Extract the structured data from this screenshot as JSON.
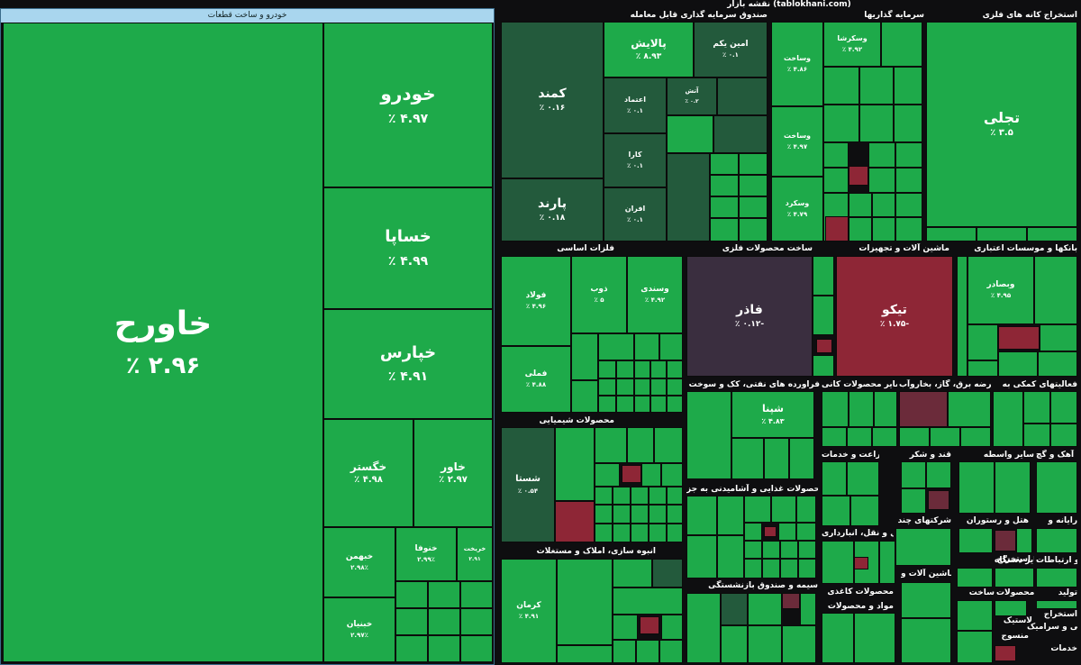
{
  "header": {
    "site_title": "نقشه بازار (tablokhani.com)"
  },
  "auto_group": {
    "title": "خودرو و ساخت قطعات",
    "tiles": [
      {
        "name": "خاورح",
        "pct": "٪ ۲.۹۶"
      },
      {
        "name": "خودرو",
        "pct": "٪ ۴.۹۷"
      },
      {
        "name": "خساپا",
        "pct": "٪ ۴.۹۹"
      },
      {
        "name": "خپارس",
        "pct": "٪ ۴.۹۱"
      },
      {
        "name": "خگستر",
        "pct": "٪ ۴.۹۸"
      },
      {
        "name": "خاور",
        "pct": "٪ ۲.۹۷"
      },
      {
        "name": "خبهمن",
        "pct": "۲.۹۸٪"
      },
      {
        "name": "خنوفا",
        "pct": "۲.۹۹٪"
      },
      {
        "name": "خریخت",
        "pct": "۲.۹۱"
      },
      {
        "name": "خبنیان",
        "pct": "۲.۹۷٪"
      }
    ]
  },
  "sectors": {
    "s1": "صندوق سرمایه گذاری قابل معامله",
    "s2": "سرمایه گذاریها",
    "s3": "استخراج کانه های فلزی",
    "s4": "فلزات اساسی",
    "s5": "ساخت محصولات فلزی",
    "s6": "ماشین آلات و تجهیزات",
    "s7": "بانکها و موسسات اعتباری",
    "s8": "محصولات شیمیایی",
    "s9": "فراورده های نفتی، کک و سوخت",
    "s10": "سایر محصولات کانی",
    "s11": "عرضه برق، گاز، بخاروآب",
    "s12": "فعالیتهای کمکی به",
    "s13": "محصولات غذایی و آشامیدنی به جز",
    "s14": "زراعت و خدمات",
    "s15": "قند و شکر",
    "s16": "سیمان، آهک و گچ",
    "s17": "انبوه سازی، املاک و مستغلات",
    "s18": "حمل و نقل، انبارداری",
    "s19": "هتل و رستوران",
    "s20": "شرکتهای چند",
    "s21": "رایانه و",
    "s22": "مواد و محصولات",
    "s23": "ماشین آلات و",
    "s24": "لاستیک و پلاستیک",
    "s25": "استخراج",
    "s26": "ساخت",
    "s27": "اطلاعات و ارتباطات",
    "s28": "تولید",
    "s29": "محصولات",
    "s30": "سایر واسطه",
    "s31": "لاستیک",
    "s32": "کاشی و سرامیک",
    "s33": "خدمات",
    "s34": "منسوج",
    "s35": "استخراج",
    "s36": "سایر دستگاه",
    "s37": "سیمه و صندوق بازنشستگی",
    "s38": "محصولات کاغذی"
  },
  "tiles": {
    "kamand": {
      "name": "کمند",
      "pct": "٪ ۰.۱۶"
    },
    "parand": {
      "name": "پارند",
      "pct": "٪ ۰.۱۸"
    },
    "palayesh": {
      "name": "پالایش",
      "pct": "٪ ۸.۹۳"
    },
    "amin_yekom": {
      "name": "امین یکم",
      "pct": "٪ ۰.۱"
    },
    "etemad": {
      "name": "اعتماد",
      "pct": "٪ ۰.۱"
    },
    "atlas": {
      "name": "آتش",
      "pct": "٪ ۰.۲"
    },
    "kara": {
      "name": "کارا",
      "pct": "٪ ۰.۱"
    },
    "afran": {
      "name": "افران",
      "pct": "٪ ۰.۱"
    },
    "vasakhsa": {
      "name": "وساخت",
      "pct": "٪ ۴.۸۶"
    },
    "vaskarsha": {
      "name": "وسکرشا",
      "pct": "٪ ۴.۹۲"
    },
    "vasakhtam": {
      "name": "وساخت",
      "pct": "٪ ۴.۹۷"
    },
    "vskard": {
      "name": "وسکرد",
      "pct": "٪ ۴.۷۹"
    },
    "tajli": {
      "name": "تجلی",
      "pct": "٪ ۳.۵"
    },
    "foolad": {
      "name": "فولاد",
      "pct": "٪ ۴.۹۶"
    },
    "zob": {
      "name": "ذوب",
      "pct": "٪ ۵"
    },
    "vasandi": {
      "name": "وسندی",
      "pct": "٪ ۴.۹۲"
    },
    "fameli": {
      "name": "فملی",
      "pct": "٪ ۴.۸۸"
    },
    "fader": {
      "name": "فاذر",
      "pct": "٪ ۰.۱۲-"
    },
    "tikko": {
      "name": "تیکو",
      "pct": "٪ ۱.۷۵-"
    },
    "vbmellat": {
      "name": "وبصادر",
      "pct": "٪ ۴.۹۵"
    },
    "shasta": {
      "name": "شستا",
      "pct": "٪ ۰.۵۴"
    },
    "shpna": {
      "name": "شپنا",
      "pct": "٪ ۴.۸۳"
    },
    "kerman": {
      "name": "کرمان",
      "pct": "٪ ۴.۹۱"
    }
  }
}
